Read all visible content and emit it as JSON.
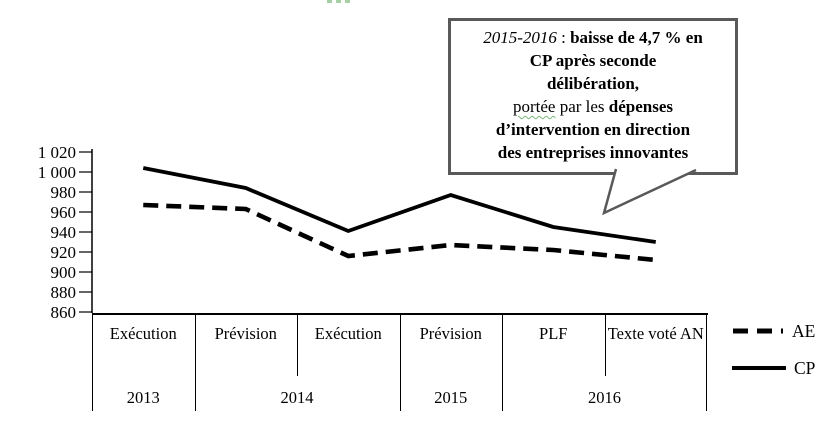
{
  "chart_data": {
    "type": "line",
    "title": "",
    "xlabel": "",
    "ylabel": "",
    "categories": [
      "Exécution",
      "Prévision",
      "Exécution",
      "Prévision",
      "PLF",
      "Texte voté AN"
    ],
    "year_groups": [
      {
        "label": "2013",
        "span": 1
      },
      {
        "label": "2014",
        "span": 2
      },
      {
        "label": "2015",
        "span": 1
      },
      {
        "label": "2016",
        "span": 2
      }
    ],
    "series": [
      {
        "name": "AE",
        "line_style": "dashed",
        "values": [
          967,
          963,
          916,
          927,
          922,
          912
        ]
      },
      {
        "name": "CP",
        "line_style": "solid",
        "values": [
          1004,
          984,
          941,
          977,
          945,
          930
        ]
      }
    ],
    "ylim": [
      860,
      1020
    ],
    "ytick_step": 20,
    "ytick_labels": [
      "1 020",
      "1 000",
      "980",
      "960",
      "940",
      "920",
      "900",
      "880",
      "860"
    ],
    "grid": false,
    "legend_position": "right"
  },
  "callout": {
    "lines": [
      {
        "parts": [
          {
            "t": "2015-2016",
            "s": "i"
          },
          {
            "t": " : ",
            "s": "r"
          },
          {
            "t": "baisse de 4,7 % en",
            "s": "b"
          }
        ]
      },
      {
        "parts": [
          {
            "t": "CP après seconde",
            "s": "b"
          }
        ]
      },
      {
        "parts": [
          {
            "t": "délibération,",
            "s": "b"
          }
        ]
      },
      {
        "parts": [
          {
            "t": "portée",
            "s": "w"
          },
          {
            "t": " par les ",
            "s": "r"
          },
          {
            "t": "dépenses",
            "s": "b"
          }
        ]
      },
      {
        "parts": [
          {
            "t": "d’intervention en direction",
            "s": "b"
          }
        ]
      },
      {
        "parts": [
          {
            "t": "des entreprises innovantes",
            "s": "b"
          }
        ]
      }
    ]
  },
  "colors": {
    "line": "#000000",
    "axis": "#000000",
    "table_border": "#000000",
    "callout_border": "#595959",
    "squiggle": "#a6cfa6"
  }
}
